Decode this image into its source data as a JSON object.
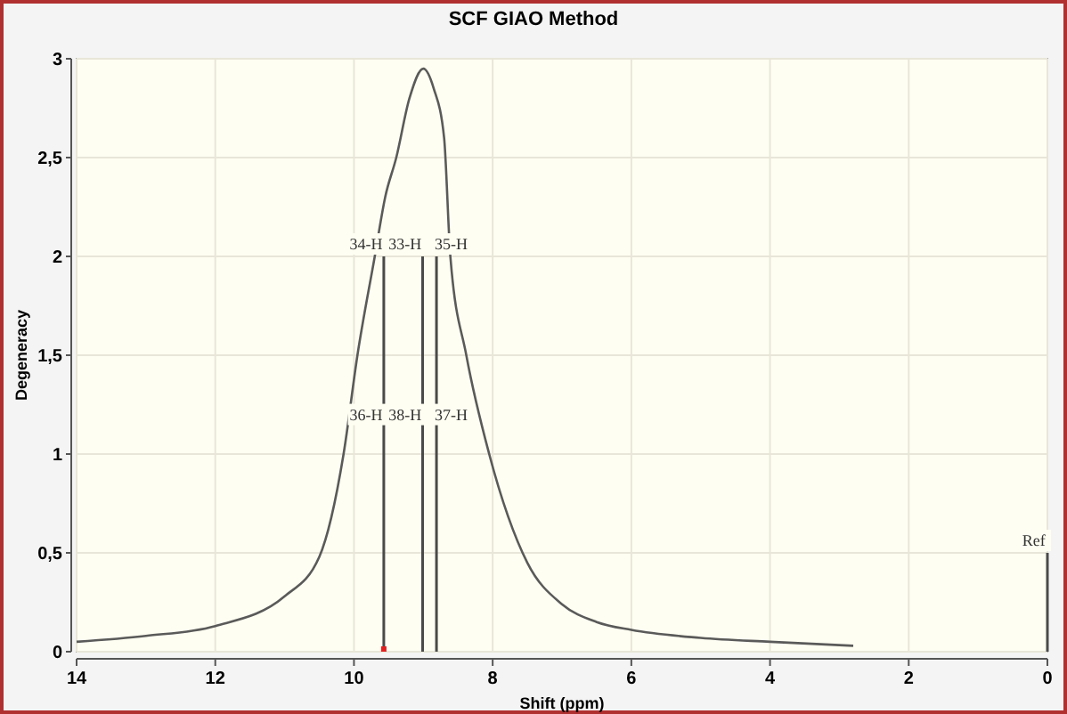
{
  "chart_data": {
    "type": "line",
    "title": "SCF GIAO Method",
    "xlabel": "Shift (ppm)",
    "ylabel": "Degeneracy",
    "series": [
      {
        "color": "#5a5a5a",
        "x": [
          14,
          13,
          12,
          11,
          10.5,
          10.15,
          9.95,
          9.7,
          9.55,
          9.39,
          9.2,
          9.0,
          8.85,
          8.7,
          8.61,
          8.38,
          8.05,
          7.5,
          7,
          6.5,
          6,
          5,
          4,
          2.8
        ],
        "values": [
          0.05,
          0.08,
          0.13,
          0.28,
          0.48,
          1.0,
          1.5,
          2.0,
          2.3,
          2.5,
          2.8,
          2.95,
          2.85,
          2.6,
          2.0,
          1.5,
          1.0,
          0.45,
          0.24,
          0.15,
          0.11,
          0.07,
          0.05,
          0.03
        ]
      },
      {
        "type": "bar",
        "color": "#4a4a4a",
        "x": [
          9.57,
          9.01,
          8.81,
          0
        ],
        "values": [
          2,
          2,
          2,
          0.5
        ]
      }
    ],
    "xlim": [
      14,
      0
    ],
    "xticks": [
      14,
      12,
      10,
      8,
      6,
      4,
      2,
      0
    ],
    "ylim": [
      0,
      3
    ],
    "yticks": [
      0,
      {
        "value": 0.5,
        "label": "0,5"
      },
      1,
      {
        "value": 1.5,
        "label": "1,5"
      },
      2,
      {
        "value": 2.5,
        "label": "2,5"
      },
      3
    ],
    "grid": true,
    "annotations": [
      {
        "text": "34-H",
        "x": 9.57,
        "y": 2
      },
      {
        "text": "33-H",
        "x": 9.01,
        "y": 2
      },
      {
        "text": "35-H",
        "x": 8.81,
        "y": 2
      },
      {
        "text": "36-H",
        "x": 9.57,
        "y": 1.2
      },
      {
        "text": "38-H",
        "x": 9.01,
        "y": 1.2
      },
      {
        "text": "37-H",
        "x": 8.81,
        "y": 1.2
      },
      {
        "text": "Ref",
        "x": 0,
        "y": 0.5
      }
    ]
  }
}
